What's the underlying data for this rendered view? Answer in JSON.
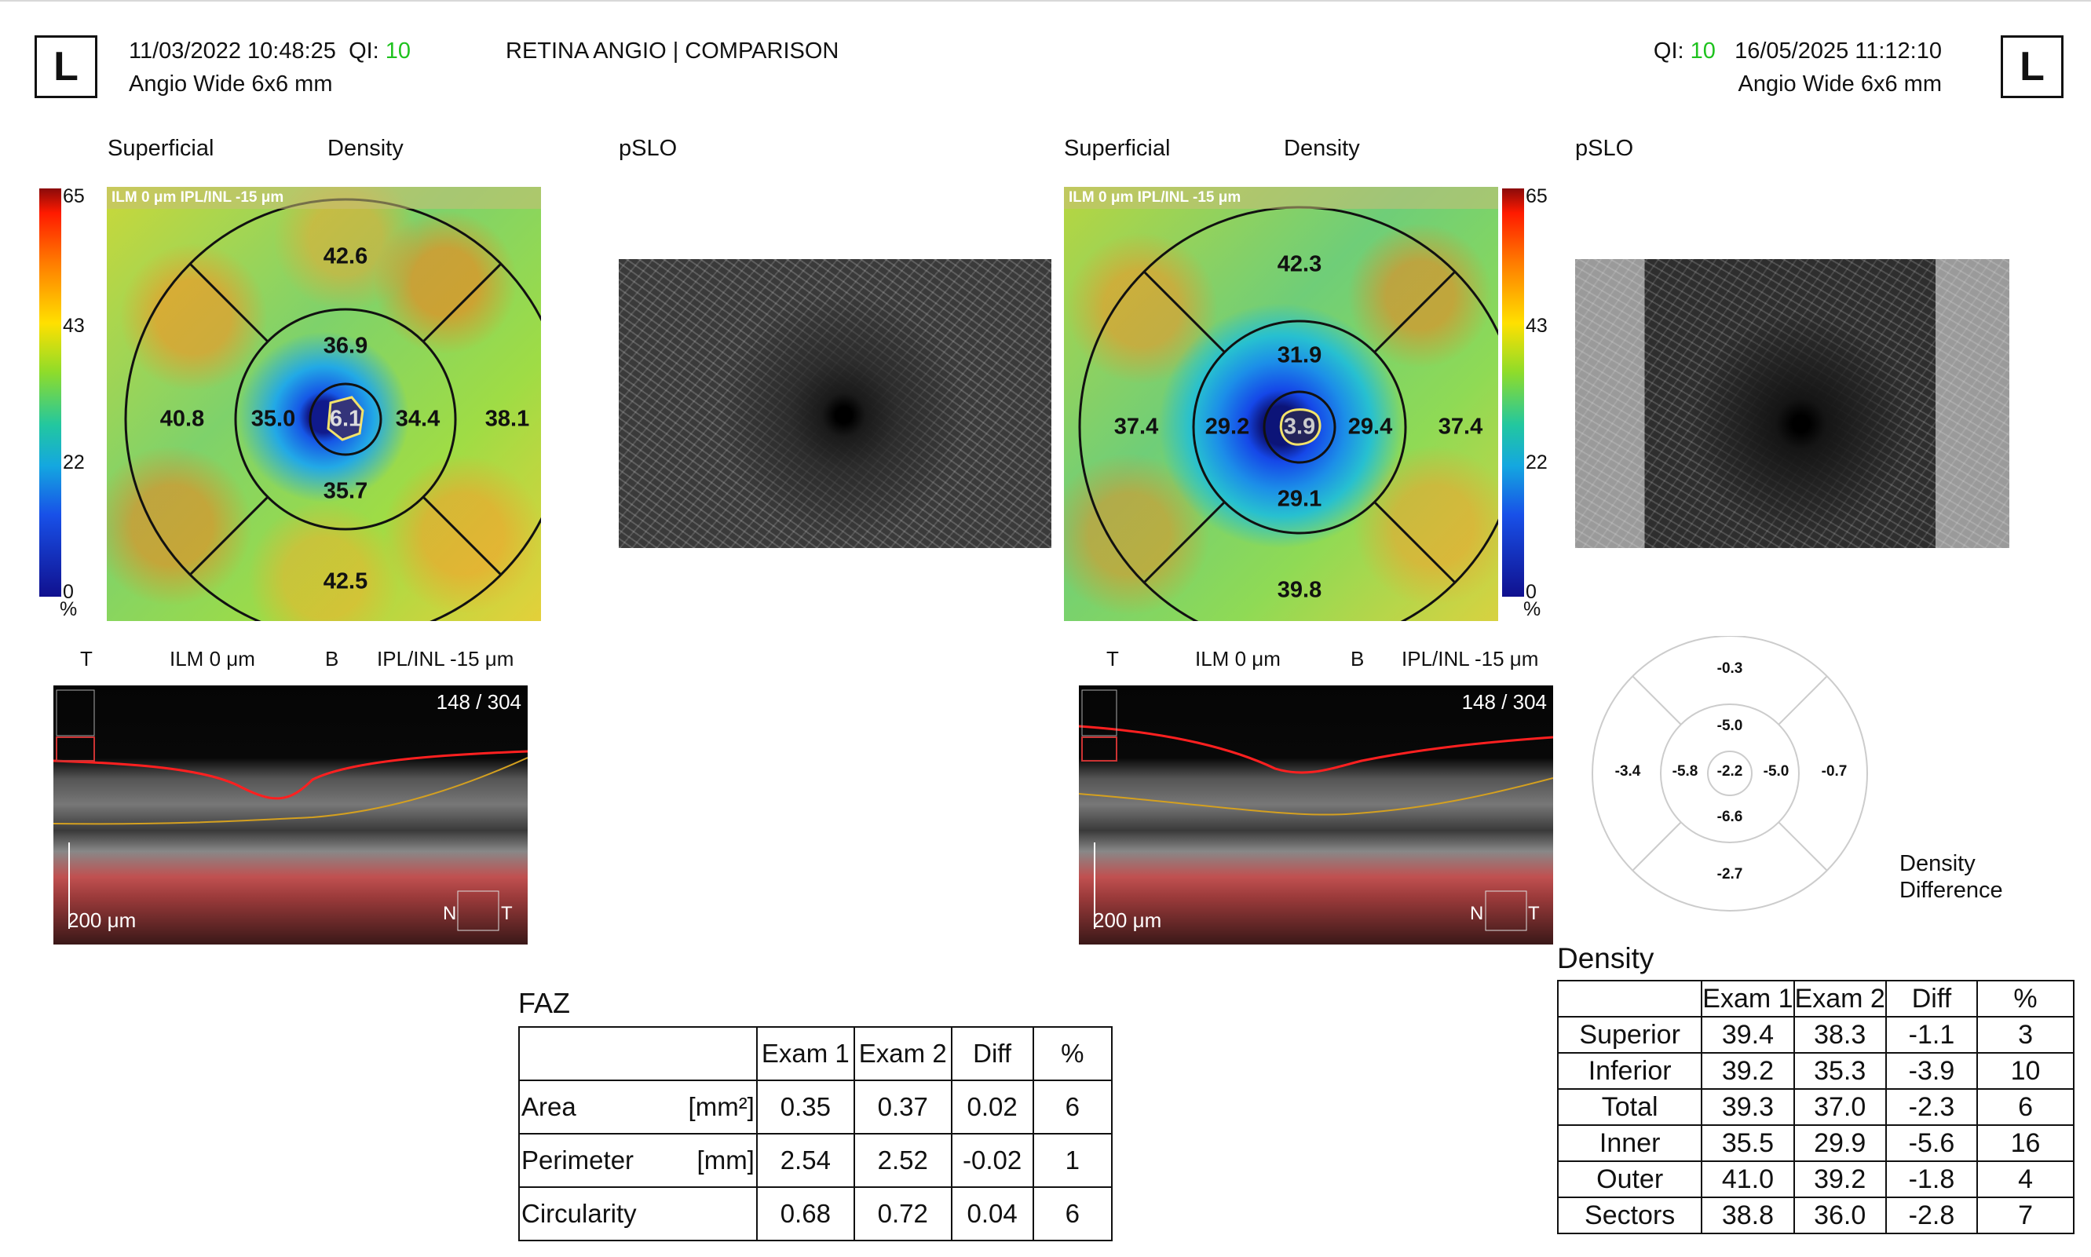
{
  "header": {
    "left": {
      "eye": "L",
      "datetime": "11/03/2022 10:48:25",
      "qi_label": "QI:",
      "qi_value": "10",
      "scan": "Angio Wide  6x6 mm"
    },
    "title": "RETINA ANGIO | COMPARISON",
    "right": {
      "eye": "L",
      "datetime": "16/05/2025 11:12:10",
      "qi_label": "QI:",
      "qi_value": "10",
      "scan": "Angio Wide  6x6 mm"
    },
    "qi_color": "#1ec21e"
  },
  "exam1": {
    "label_superficial": "Superficial",
    "label_density": "Density",
    "label_pslo": "pSLO",
    "map_bar": "ILM 0 μm   IPL/INL -15 μm",
    "scale": {
      "top": "65",
      "mid": "43",
      "low": "22",
      "zero": "0",
      "unit": "%"
    },
    "values": {
      "outer_superior": "42.6",
      "inner_superior": "36.9",
      "outer_nasal": "40.8",
      "inner_nasal": "35.0",
      "center": "6.1",
      "inner_temporal": "34.4",
      "outer_temporal": "38.1",
      "inner_inferior": "35.7",
      "outer_inferior": "42.5"
    },
    "bscan_labels": {
      "t": "T",
      "ilm": "ILM 0 μm",
      "b": "B",
      "ipl": "IPL/INL -15 μm",
      "slice": "148 / 304",
      "scale": "200 μm",
      "n": "N",
      "t2": "T"
    }
  },
  "exam2": {
    "label_superficial": "Superficial",
    "label_density": "Density",
    "label_pslo": "pSLO",
    "map_bar": "ILM 0 μm   IPL/INL -15 μm",
    "scale": {
      "top": "65",
      "mid": "43",
      "low": "22",
      "zero": "0",
      "unit": "%"
    },
    "values": {
      "outer_superior": "42.3",
      "inner_superior": "31.9",
      "outer_nasal": "37.4",
      "inner_nasal": "29.2",
      "center": "3.9",
      "inner_temporal": "29.4",
      "outer_temporal": "37.4",
      "inner_inferior": "29.1",
      "outer_inferior": "39.8"
    },
    "bscan_labels": {
      "t": "T",
      "ilm": "ILM 0 μm",
      "b": "B",
      "ipl": "IPL/INL -15 μm",
      "slice": "148 / 304",
      "scale": "200 μm",
      "n": "N",
      "t2": "T"
    }
  },
  "density_difference": {
    "label_line1": "Density",
    "label_line2": "Difference",
    "outer_superior": "-0.3",
    "inner_superior": "-5.0",
    "outer_nasal": "-3.4",
    "inner_nasal": "-5.8",
    "center": "-2.2",
    "inner_temporal": "-5.0",
    "outer_temporal": "-0.7",
    "inner_inferior": "-6.6",
    "outer_inferior": "-2.7"
  },
  "faz_table": {
    "title": "FAZ",
    "headers": [
      "",
      "Exam 1",
      "Exam 2",
      "Diff",
      "%"
    ],
    "rows": [
      {
        "name": "Area",
        "unit": "[mm²]",
        "exam1": "0.35",
        "exam2": "0.37",
        "diff": "0.02",
        "pct": "6"
      },
      {
        "name": "Perimeter",
        "unit": "[mm]",
        "exam1": "2.54",
        "exam2": "2.52",
        "diff": "-0.02",
        "pct": "1"
      },
      {
        "name": "Circularity",
        "unit": "",
        "exam1": "0.68",
        "exam2": "0.72",
        "diff": "0.04",
        "pct": "6"
      }
    ]
  },
  "density_table": {
    "title": "Density",
    "headers": [
      "",
      "Exam 1",
      "Exam 2",
      "Diff",
      "%"
    ],
    "rows": [
      {
        "name": "Superior",
        "exam1": "39.4",
        "exam2": "38.3",
        "diff": "-1.1",
        "pct": "3"
      },
      {
        "name": "Inferior",
        "exam1": "39.2",
        "exam2": "35.3",
        "diff": "-3.9",
        "pct": "10"
      },
      {
        "name": "Total",
        "exam1": "39.3",
        "exam2": "37.0",
        "diff": "-2.3",
        "pct": "6"
      },
      {
        "name": "Inner",
        "exam1": "35.5",
        "exam2": "29.9",
        "diff": "-5.6",
        "pct": "16"
      },
      {
        "name": "Outer",
        "exam1": "41.0",
        "exam2": "39.2",
        "diff": "-1.8",
        "pct": "4"
      },
      {
        "name": "Sectors",
        "exam1": "38.8",
        "exam2": "36.0",
        "diff": "-2.8",
        "pct": "7"
      }
    ]
  }
}
